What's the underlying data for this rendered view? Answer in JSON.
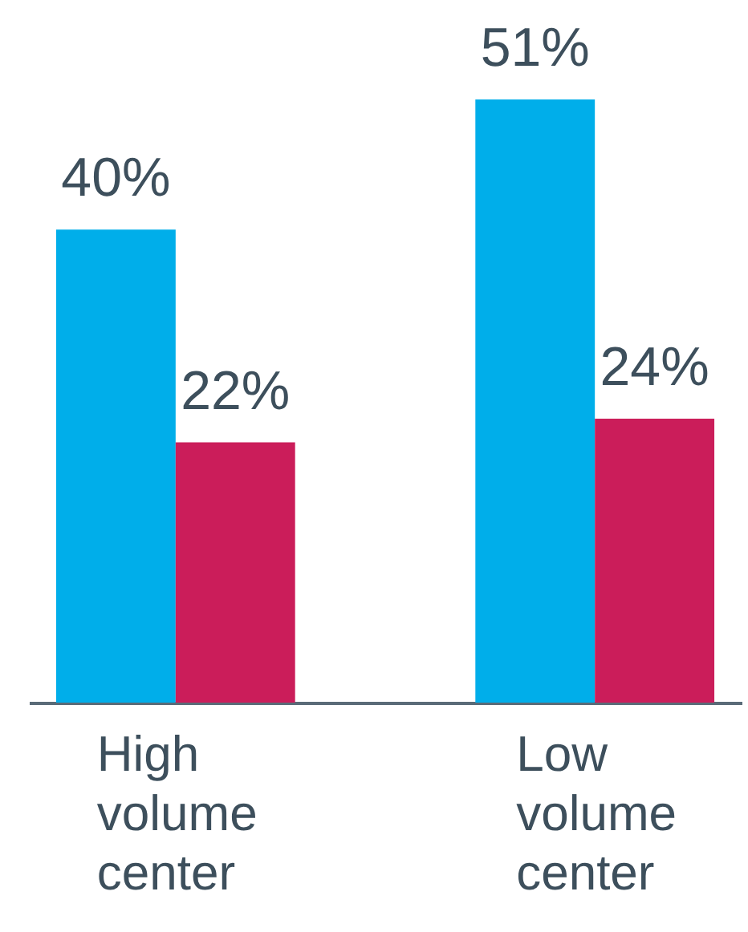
{
  "chart_data": {
    "type": "bar",
    "categories": [
      "High volume center",
      "Low volume center"
    ],
    "series": [
      {
        "color": "#00aeea",
        "values": [
          40,
          51
        ],
        "value_labels": [
          "40%",
          "51%"
        ]
      },
      {
        "color": "#cb1d5a",
        "values": [
          22,
          24
        ],
        "value_labels": [
          "22%",
          "24%"
        ]
      }
    ],
    "legend": false,
    "grid": false
  }
}
